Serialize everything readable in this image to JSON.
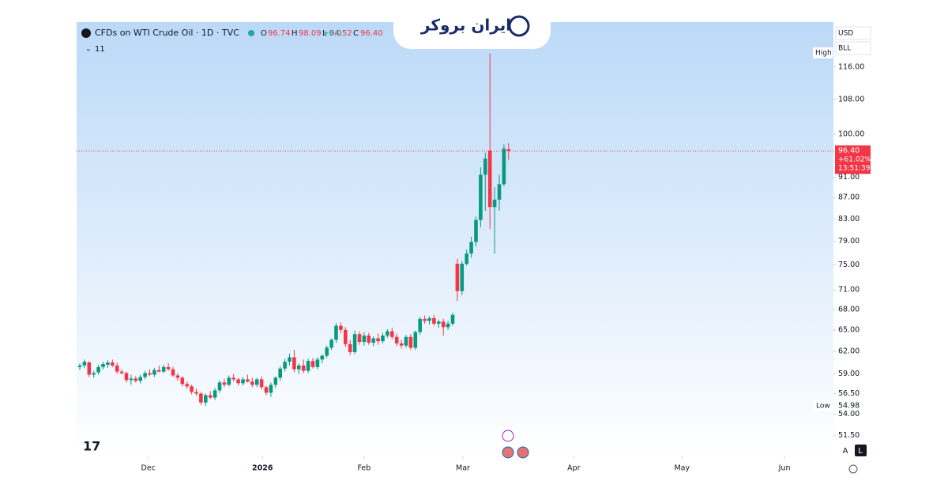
{
  "header": {
    "symbol": "CFDs on WTI Crude Oil · 1D · TVC",
    "ohlc": [
      {
        "letter": "O",
        "label": "96.74"
      },
      {
        "letter": "H",
        "label": "98.09"
      },
      {
        "letter": "L",
        "label": "94.52"
      },
      {
        "letter": "C",
        "label": "96.40"
      }
    ],
    "change": "+0.0",
    "indicators": "11",
    "logo": "ایران بروکر"
  },
  "controls": {
    "currency": "USD",
    "unit": "BLL",
    "auto": "A",
    "log": "L"
  },
  "chart_data": {
    "type": "candlestick",
    "log": true,
    "up_color": "#089981",
    "down_color": "#f23645",
    "ylim": [
      49.2,
      127.6
    ],
    "yticks": [
      {
        "value": 51.5,
        "label": "51.50"
      },
      {
        "value": 54,
        "label": "54.00"
      },
      {
        "value": 56.5,
        "label": "56.50"
      },
      {
        "value": 59,
        "label": "59.00"
      },
      {
        "value": 62,
        "label": "62.00"
      },
      {
        "value": 65,
        "label": "65.00"
      },
      {
        "value": 68,
        "label": "68.00"
      },
      {
        "value": 71,
        "label": "71.00"
      },
      {
        "value": 75,
        "label": "75.00"
      },
      {
        "value": 79,
        "label": "79.00"
      },
      {
        "value": 83,
        "label": "83.00"
      },
      {
        "value": 87,
        "label": "87.00"
      },
      {
        "value": 91,
        "label": "91.00"
      },
      {
        "value": 100,
        "label": "100.00"
      },
      {
        "value": 108,
        "label": "108.00"
      },
      {
        "value": 116,
        "label": "116.00"
      }
    ],
    "xlim": [
      -0.68,
      161.7
    ],
    "xticks": [
      {
        "value": 14.7,
        "label": "Dec"
      },
      {
        "value": 39.2,
        "label": "2026"
      },
      {
        "value": 61,
        "label": "Feb"
      },
      {
        "value": 82.2,
        "label": "Mar"
      },
      {
        "value": 106,
        "label": "Apr"
      },
      {
        "value": 129.2,
        "label": "May"
      },
      {
        "value": 151.2,
        "label": "Jun"
      }
    ],
    "last_price": {
      "value": 96.4,
      "label": "96.40",
      "change": "+61.02%",
      "countdown": "13:51:39"
    },
    "high_label": "High",
    "low_label": "Low",
    "low_value": 54.98,
    "candles": [
      [
        59.9,
        60.4,
        59.5,
        60.1
      ],
      [
        60.1,
        60.9,
        59.8,
        60.6
      ],
      [
        60.5,
        60.7,
        58.6,
        58.9
      ],
      [
        58.9,
        59.4,
        58.5,
        59.1
      ],
      [
        59.2,
        60.2,
        58.9,
        59.9
      ],
      [
        59.9,
        60.6,
        59.6,
        60.3
      ],
      [
        60.2,
        60.8,
        59.8,
        60.5
      ],
      [
        60.5,
        60.9,
        59.9,
        60.1
      ],
      [
        60.1,
        60.5,
        59,
        59.3
      ],
      [
        59.3,
        59.6,
        58.9,
        59.1
      ],
      [
        59.1,
        59.3,
        57.9,
        58.2
      ],
      [
        58.2,
        58.9,
        57.6,
        58.4
      ],
      [
        58.4,
        58.7,
        57.9,
        58.1
      ],
      [
        58.1,
        58.9,
        57.8,
        58.6
      ],
      [
        58.6,
        59.4,
        58.3,
        59.1
      ],
      [
        59.1,
        59.6,
        58.7,
        58.9
      ],
      [
        58.9,
        59.8,
        58.6,
        59.5
      ],
      [
        59.5,
        60.1,
        59.2,
        59.3
      ],
      [
        59.3,
        60.2,
        59.1,
        59.9
      ],
      [
        59.9,
        60.4,
        59.4,
        59.6
      ],
      [
        59.6,
        59.9,
        58.6,
        58.8
      ],
      [
        58.8,
        59.1,
        58.1,
        58.5
      ],
      [
        58.5,
        58.7,
        57.4,
        57.7
      ],
      [
        57.7,
        58,
        57.1,
        57.4
      ],
      [
        57.4,
        57.6,
        56.4,
        56.7
      ],
      [
        56.7,
        57.1,
        56.2,
        56.5
      ],
      [
        56.5,
        56.7,
        55.1,
        55.4
      ],
      [
        55.4,
        56.5,
        54.98,
        56.3
      ],
      [
        56.3,
        56.8,
        55.8,
        56
      ],
      [
        56,
        57.2,
        55.7,
        56.9
      ],
      [
        56.9,
        58.2,
        56.6,
        57.9
      ],
      [
        57.9,
        58.4,
        57.3,
        57.6
      ],
      [
        57.6,
        58.8,
        57.4,
        58.5
      ],
      [
        58.5,
        59,
        58,
        58.3
      ],
      [
        58.3,
        58.5,
        57.5,
        57.8
      ],
      [
        57.8,
        58.6,
        57.5,
        58.3
      ],
      [
        58.3,
        58.9,
        57.9,
        58
      ],
      [
        58,
        58.5,
        57.3,
        57.6
      ],
      [
        57.6,
        58.5,
        57.3,
        58.3
      ],
      [
        58.3,
        58.7,
        57,
        57.3
      ],
      [
        57.3,
        57.5,
        56.3,
        56.6
      ],
      [
        56.6,
        57.9,
        56.1,
        57.6
      ],
      [
        57.6,
        58.7,
        57.2,
        58.5
      ],
      [
        58.5,
        60,
        58.1,
        59.7
      ],
      [
        59.7,
        61,
        59.3,
        60.6
      ],
      [
        60.6,
        61.7,
        60.1,
        61.2
      ],
      [
        61.2,
        62.2,
        59.2,
        59.6
      ],
      [
        59.6,
        60.4,
        59,
        60.1
      ],
      [
        60.1,
        60.9,
        59.1,
        59.4
      ],
      [
        59.4,
        61,
        59.1,
        60.7
      ],
      [
        60.7,
        61.1,
        59.7,
        59.9
      ],
      [
        59.9,
        61.2,
        59.6,
        60.9
      ],
      [
        60.9,
        61.6,
        60.4,
        61.4
      ],
      [
        61.4,
        62.8,
        61.1,
        62.5
      ],
      [
        62.5,
        63.8,
        62.2,
        63.6
      ],
      [
        63.6,
        66,
        63.2,
        65.6
      ],
      [
        65.6,
        66.1,
        64.5,
        65
      ],
      [
        65,
        65.4,
        62.6,
        63
      ],
      [
        63,
        63.6,
        61.5,
        61.9
      ],
      [
        61.9,
        64.9,
        61.6,
        64.4
      ],
      [
        64.4,
        64.8,
        62.9,
        63.3
      ],
      [
        63.3,
        64.7,
        62.8,
        64.2
      ],
      [
        64.2,
        64.6,
        62.9,
        63.2
      ],
      [
        63.2,
        64.1,
        62.7,
        63.8
      ],
      [
        63.8,
        64.5,
        62.9,
        63.4
      ],
      [
        63.4,
        64.6,
        63.1,
        64.2
      ],
      [
        64.2,
        65.1,
        63.9,
        64.8
      ],
      [
        64.8,
        65.3,
        63.7,
        64
      ],
      [
        64,
        64.5,
        62.7,
        63.1
      ],
      [
        63.1,
        63.6,
        62.4,
        62.8
      ],
      [
        62.8,
        64.3,
        62.5,
        64
      ],
      [
        64,
        64.4,
        62.2,
        62.5
      ],
      [
        62.5,
        64.9,
        62.2,
        64.7
      ],
      [
        64.7,
        66.9,
        64.3,
        66.6
      ],
      [
        66.6,
        67.1,
        65.9,
        66.3
      ],
      [
        66.3,
        67,
        65.8,
        66.7
      ],
      [
        66.7,
        67.2,
        65.6,
        65.9
      ],
      [
        65.9,
        66.5,
        65.3,
        66.2
      ],
      [
        66.2,
        66.6,
        64.2,
        65.4
      ],
      [
        65.4,
        66.3,
        65,
        65.9
      ],
      [
        65.9,
        67.5,
        65.6,
        67.2
      ],
      [
        75.2,
        76,
        69.3,
        70.8
      ],
      [
        70.8,
        75.6,
        70.2,
        75.2
      ],
      [
        75.2,
        77.6,
        74.9,
        76.9
      ],
      [
        76.9,
        79.8,
        76.2,
        78.9
      ],
      [
        78.9,
        83.4,
        78.1,
        82.8
      ],
      [
        82.8,
        93,
        81.5,
        91.5
      ],
      [
        91.5,
        96,
        84.5,
        94.8
      ],
      [
        96.5,
        119.5,
        81.2,
        85.2
      ],
      [
        85.2,
        89,
        76.9,
        86.6
      ],
      [
        86.6,
        91.5,
        84.5,
        89.6
      ],
      [
        89.6,
        97.8,
        89.2,
        96.9
      ],
      [
        96.74,
        98.09,
        94.52,
        96.4
      ]
    ]
  }
}
